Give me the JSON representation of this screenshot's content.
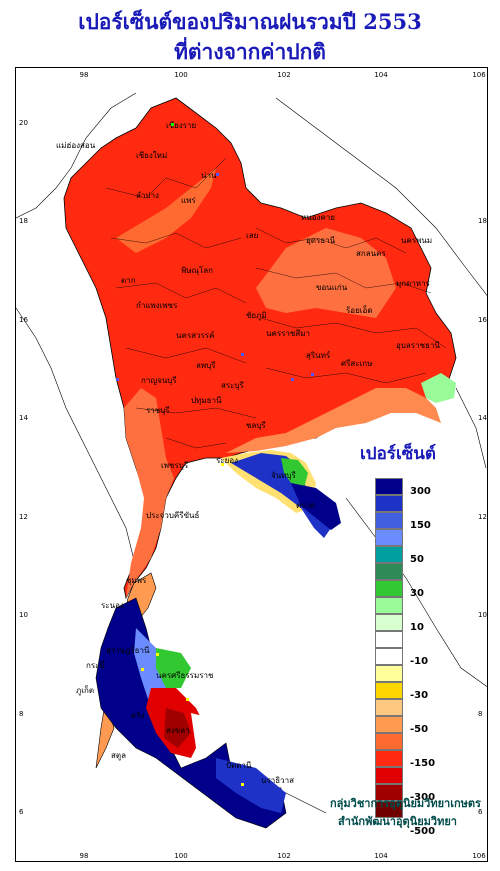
{
  "title": {
    "line1": "เปอร์เซ็นต์ของปริมาณฝนรวมปี 2553",
    "line2": "ที่ต่างจากค่าปกติ"
  },
  "axes": {
    "x_ticks": [
      "98",
      "100",
      "102",
      "104",
      "106"
    ],
    "y_ticks": [
      "20",
      "18",
      "16",
      "14",
      "12",
      "10",
      "8",
      "6"
    ]
  },
  "provinces": [
    "เชียงราย",
    "แม่ฮ่องสอน",
    "เชียงใหม่",
    "ลำปาง",
    "แพร่",
    "น่าน",
    "หนองคาย",
    "อุดรธานี",
    "สกลนคร",
    "นครพนม",
    "มุกดาหาร",
    "เลย",
    "พิษณุโลก",
    "ตาก",
    "กำแพงเพชร",
    "ขอนแก่น",
    "นครสวรรค์",
    "ชัยภูมิ",
    "ร้อยเอ็ด",
    "อุบลราชธานี",
    "นครราชสีมา",
    "ศรีสะเกษ",
    "สุรินทร์",
    "ลพบุรี",
    "กาญจนบุรี",
    "สระบุรี",
    "ปทุมธานี",
    "ราชบุรี",
    "ชลบุรี",
    "ระยอง",
    "จันทบุรี",
    "ตราด",
    "เพชรบุรี",
    "ประจวบคีรีขันธ์",
    "ชุมพร",
    "ระนอง",
    "สุราษฎร์ธานี",
    "กระบี่",
    "ภูเก็ต",
    "นครศรีธรรมราช",
    "ตรัง",
    "สงขลา",
    "ปัตตานี",
    "นราธิวาส",
    "สตูล"
  ],
  "legend": {
    "title": "เปอร์เซ็นต์",
    "labels": [
      "300",
      "150",
      "50",
      "30",
      "10",
      "-10",
      "-30",
      "-50",
      "-150",
      "-300",
      "-500"
    ],
    "colors": [
      "#00008b",
      "#1e32c8",
      "#4060e0",
      "#6a8cff",
      "#00a0a0",
      "#2e8b57",
      "#32c832",
      "#98fb98",
      "#d8ffd0",
      "#ffffff",
      "#ffffff",
      "#ffff9a",
      "#ffd700",
      "#ffc880",
      "#ff9a50",
      "#ff6a30",
      "#ff2a10",
      "#e00000",
      "#a00000",
      "#700000"
    ]
  },
  "credit": {
    "line1": "กลุ่มวิชาการอุตุนิยมวิทยาเกษตร",
    "line2": "สำนักพัฒนาอุตุนิยมวิทยา"
  }
}
